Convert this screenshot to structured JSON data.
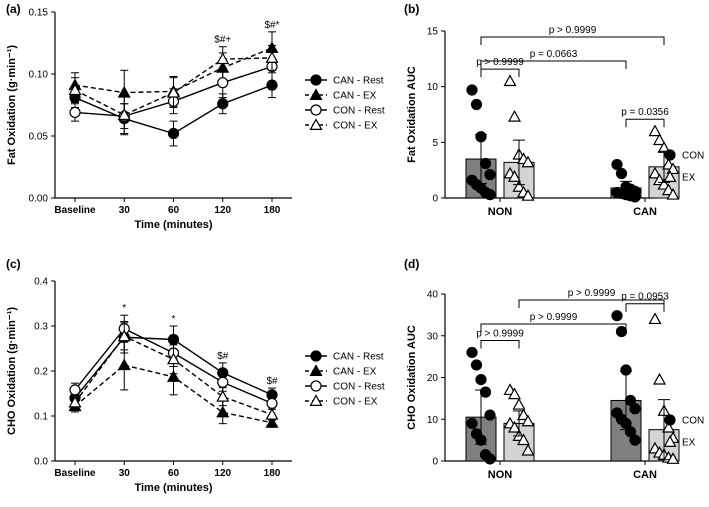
{
  "chart_data": [
    {
      "panel": "(a)",
      "type": "line",
      "xlabel": "Time (minutes)",
      "ylabel": "Fat Oxidation (g·min⁻¹)",
      "categories": [
        "Baseline",
        "30",
        "60",
        "120",
        "180"
      ],
      "ylim": [
        0.0,
        0.15
      ],
      "yticks": [
        "0.00",
        "0.05",
        "0.10",
        "0.15"
      ],
      "series": [
        {
          "name": "CAN - Rest",
          "values": [
            0.081,
            0.064,
            0.052,
            0.076,
            0.091
          ],
          "errors": [
            0.008,
            0.012,
            0.01,
            0.008,
            0.01
          ],
          "marker": "circle-filled",
          "dash": "solid"
        },
        {
          "name": "CAN - EX",
          "values": [
            0.091,
            0.085,
            0.086,
            0.105,
            0.121
          ],
          "errors": [
            0.01,
            0.018,
            0.012,
            0.012,
            0.013
          ],
          "marker": "triangle-filled",
          "dash": "dashed"
        },
        {
          "name": "CON - Rest",
          "values": [
            0.069,
            0.066,
            0.078,
            0.093,
            0.106
          ],
          "errors": [
            0.007,
            0.01,
            0.01,
            0.012,
            0.012
          ],
          "marker": "circle-open",
          "dash": "solid"
        },
        {
          "name": "CON - EX",
          "values": [
            0.087,
            0.067,
            0.085,
            0.112,
            0.113
          ],
          "errors": [
            0.01,
            0.016,
            0.012,
            0.01,
            0.01
          ],
          "marker": "triangle-open",
          "dash": "dashed"
        }
      ],
      "annotations": [
        {
          "category": "120",
          "text": "$#+"
        },
        {
          "category": "180",
          "text": "$#*"
        }
      ]
    },
    {
      "panel": "(b)",
      "type": "bar",
      "ylabel": "Fat Oxidation AUC",
      "groups": [
        "NON",
        "CAN"
      ],
      "ylim": [
        0,
        15
      ],
      "yticks": [
        "0",
        "5",
        "10",
        "15"
      ],
      "series": [
        {
          "name": "CON",
          "means": [
            3.5,
            0.9
          ],
          "errors": [
            2.2,
            0.6
          ],
          "points": [
            [
              9.7,
              8.4,
              5.5,
              3.1,
              2.1,
              1.6,
              1.2,
              0.9,
              0.5,
              0.3
            ],
            [
              3.0,
              2.2,
              1.0,
              0.8,
              0.6,
              0.5,
              0.4,
              0.3,
              0.2,
              0.1
            ]
          ],
          "marker": "circle-filled",
          "bar_color": "#808080"
        },
        {
          "name": "EX",
          "means": [
            3.2,
            2.8
          ],
          "errors": [
            2.0,
            1.4
          ],
          "points": [
            [
              10.5,
              7.3,
              3.9,
              3.5,
              3.2,
              2.2,
              1.9,
              1.0,
              0.5,
              0.2
            ],
            [
              6.0,
              5.2,
              4.5,
              3.0,
              2.6,
              2.2,
              1.6,
              1.2,
              0.7,
              0.3
            ]
          ],
          "marker": "triangle-open",
          "bar_color": "#d4d4d4"
        }
      ],
      "comparisons": [
        {
          "label": "p > 0.9999",
          "from": "NON-CON",
          "to": "CAN-EX",
          "level": 3
        },
        {
          "label": "p = 0.0663",
          "from": "NON-CON",
          "to": "CAN-CON",
          "level": 2
        },
        {
          "label": "p > 0.9999",
          "from": "NON-CON",
          "to": "NON-EX",
          "level": 1
        },
        {
          "label": "p = 0.0356",
          "from": "CAN-CON",
          "to": "CAN-EX",
          "level": 1
        }
      ],
      "legend": [
        "CON",
        "EX"
      ]
    },
    {
      "panel": "(c)",
      "type": "line",
      "xlabel": "Time (minutes)",
      "ylabel": "CHO Oxidation (g·min⁻¹)",
      "categories": [
        "Baseline",
        "30",
        "60",
        "120",
        "180"
      ],
      "ylim": [
        0.0,
        0.4
      ],
      "yticks": [
        "0.0",
        "0.1",
        "0.2",
        "0.3",
        "0.4"
      ],
      "series": [
        {
          "name": "CAN - Rest",
          "values": [
            0.14,
            0.275,
            0.27,
            0.196,
            0.147
          ],
          "errors": [
            0.015,
            0.035,
            0.03,
            0.022,
            0.015
          ],
          "marker": "circle-filled",
          "dash": "solid"
        },
        {
          "name": "CAN - EX",
          "values": [
            0.122,
            0.213,
            0.187,
            0.108,
            0.085
          ],
          "errors": [
            0.013,
            0.055,
            0.04,
            0.025,
            0.01
          ],
          "marker": "triangle-filled",
          "dash": "dashed"
        },
        {
          "name": "CON - Rest",
          "values": [
            0.158,
            0.294,
            0.24,
            0.175,
            0.128
          ],
          "errors": [
            0.015,
            0.03,
            0.03,
            0.02,
            0.013
          ],
          "marker": "circle-open",
          "dash": "solid"
        },
        {
          "name": "CON - EX",
          "values": [
            0.13,
            0.277,
            0.226,
            0.143,
            0.103
          ],
          "errors": [
            0.014,
            0.03,
            0.032,
            0.02,
            0.012
          ],
          "marker": "triangle-open",
          "dash": "dashed"
        }
      ],
      "annotations": [
        {
          "category": "30",
          "text": "*"
        },
        {
          "category": "60",
          "text": "*"
        },
        {
          "category": "120",
          "text": "$#"
        },
        {
          "category": "180",
          "text": "$#"
        }
      ]
    },
    {
      "panel": "(d)",
      "type": "bar",
      "ylabel": "CHO Oxidation AUC",
      "groups": [
        "NON",
        "CAN"
      ],
      "ylim": [
        0,
        40
      ],
      "yticks": [
        "0",
        "10",
        "20",
        "30",
        "40"
      ],
      "series": [
        {
          "name": "CON",
          "means": [
            10.5,
            14.5
          ],
          "errors": [
            6.5,
            7.0
          ],
          "points": [
            [
              26.0,
              23.0,
              19.5,
              16.5,
              11.0,
              9.0,
              6.5,
              5.0,
              1.5,
              0.5
            ],
            [
              34.8,
              31.0,
              21.8,
              14.5,
              12.5,
              11.5,
              10.0,
              9.0,
              7.0,
              5.0
            ]
          ],
          "marker": "circle-filled",
          "bar_color": "#808080"
        },
        {
          "name": "EX",
          "means": [
            9.0,
            7.5
          ],
          "errors": [
            3.0,
            7.2
          ],
          "points": [
            [
              17.0,
              16.0,
              13.5,
              11.0,
              9.5,
              9.0,
              8.0,
              6.0,
              5.0,
              2.5
            ],
            [
              34.0,
              19.5,
              12.0,
              8.0,
              5.5,
              3.0,
              2.0,
              1.5,
              0.8,
              0.5
            ]
          ],
          "marker": "triangle-open",
          "bar_color": "#d4d4d4"
        }
      ],
      "comparisons": [
        {
          "label": "p > 0.9999",
          "from": "NON-EX",
          "to": "CAN-EX",
          "level": 3
        },
        {
          "label": "p > 0.9999",
          "from": "NON-CON",
          "to": "CAN-CON",
          "level": 2
        },
        {
          "label": "p > 0.9999",
          "from": "NON-CON",
          "to": "NON-EX",
          "level": 1
        },
        {
          "label": "p = 0.0953",
          "from": "CAN-CON",
          "to": "CAN-EX",
          "level": 1
        }
      ],
      "legend": [
        "CON",
        "EX"
      ]
    }
  ]
}
